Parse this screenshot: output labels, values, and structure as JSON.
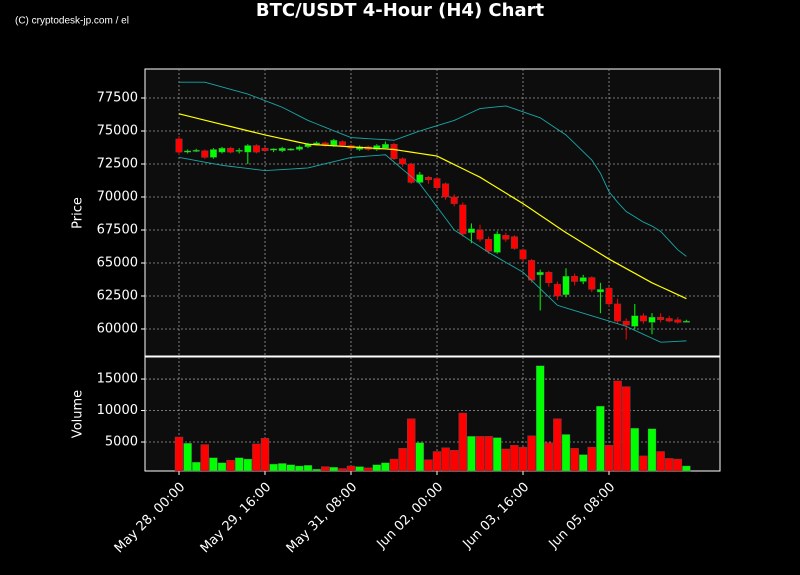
{
  "chart_data": {
    "type": "candlestick",
    "title": "BTC/USDT 4-Hour (H4) Chart",
    "watermark": "(C) cryptodesk-jp.com / el",
    "ylabel": "Price",
    "volume_label": "Volume",
    "grid": true,
    "up_color": "#00ff00",
    "down_color": "#ff0000",
    "ylim": [
      57955,
      79697
    ],
    "yticks": [
      60000,
      62500,
      65000,
      67500,
      70000,
      72500,
      75000,
      77500
    ],
    "volume_ylim": [
      400,
      18500
    ],
    "volume_yticks": [
      5000,
      10000,
      15000
    ],
    "categories": [
      "May 28, 00:00",
      null,
      null,
      null,
      null,
      null,
      null,
      null,
      null,
      null,
      "May 29, 16:00",
      null,
      null,
      null,
      null,
      null,
      null,
      null,
      null,
      null,
      "May 31, 08:00",
      null,
      null,
      null,
      null,
      null,
      null,
      null,
      null,
      null,
      "Jun 02, 00:00",
      null,
      null,
      null,
      null,
      null,
      null,
      null,
      null,
      null,
      "Jun 03, 16:00",
      null,
      null,
      null,
      null,
      null,
      null,
      null,
      null,
      null,
      "Jun 05, 08:00",
      null,
      null,
      null,
      null,
      null,
      null,
      null,
      null,
      null
    ],
    "open": [
      74400,
      73400,
      73450,
      73500,
      73000,
      73400,
      73700,
      73450,
      73400,
      73900,
      73700,
      73550,
      73500,
      73550,
      73600,
      73800,
      74000,
      74100,
      73900,
      74200,
      73900,
      73600,
      73800,
      73600,
      73700,
      74000,
      72900,
      72500,
      71100,
      71500,
      71400,
      71000,
      70000,
      69400,
      67300,
      67500,
      66800,
      65800,
      67100,
      67000,
      66000,
      65200,
      64100,
      64300,
      63400,
      62600,
      64000,
      63600,
      63900,
      62800,
      63100,
      61900,
      60600,
      60200,
      61000,
      60500,
      60900,
      60800,
      60700,
      60500
    ],
    "high": [
      74600,
      73600,
      73650,
      73600,
      73700,
      73800,
      73800,
      73700,
      74000,
      74000,
      73800,
      73700,
      73800,
      73700,
      73900,
      74100,
      74200,
      74200,
      74400,
      74300,
      74000,
      73900,
      73900,
      74000,
      74200,
      74100,
      73000,
      72600,
      71900,
      71600,
      71500,
      71100,
      70200,
      69600,
      68000,
      67900,
      67000,
      67400,
      67300,
      67100,
      66100,
      65300,
      64500,
      64400,
      63600,
      64600,
      64200,
      64100,
      64000,
      63500,
      63200,
      62300,
      60800,
      61900,
      61200,
      61200,
      61200,
      61000,
      60900,
      60700
    ],
    "low": [
      73200,
      73300,
      73400,
      72900,
      72900,
      73300,
      73300,
      73300,
      72500,
      73300,
      73400,
      73400,
      73400,
      73500,
      73500,
      73700,
      73900,
      73800,
      73800,
      73800,
      73600,
      73500,
      73500,
      73500,
      73600,
      72800,
      72300,
      71000,
      71000,
      71000,
      70500,
      69800,
      69300,
      67000,
      66500,
      66600,
      65700,
      65700,
      66600,
      66000,
      65100,
      63500,
      61400,
      63200,
      62200,
      62400,
      63300,
      63400,
      62800,
      61200,
      61700,
      60400,
      59200,
      60000,
      60400,
      59600,
      60500,
      60500,
      60400,
      60500
    ],
    "close": [
      73400,
      73500,
      73550,
      73000,
      73600,
      73700,
      73400,
      73550,
      73900,
      73400,
      73500,
      73650,
      73700,
      73650,
      73800,
      74000,
      74100,
      73900,
      74300,
      73900,
      73700,
      73800,
      73600,
      73900,
      74000,
      72900,
      72500,
      71100,
      71700,
      71300,
      70700,
      70000,
      69500,
      67200,
      67600,
      66800,
      65900,
      67200,
      66800,
      66100,
      65300,
      63700,
      64300,
      63500,
      62500,
      64000,
      63600,
      63900,
      63000,
      63000,
      61900,
      60600,
      60300,
      61000,
      60600,
      60900,
      60700,
      60600,
      60500,
      60600
    ],
    "volume": [
      5800,
      4800,
      1800,
      4600,
      2500,
      1700,
      2100,
      2500,
      2300,
      4700,
      5600,
      1500,
      1600,
      1400,
      1200,
      1300,
      700,
      1100,
      1000,
      800,
      1200,
      1100,
      900,
      1400,
      1700,
      2300,
      4000,
      8700,
      4900,
      2200,
      3500,
      4100,
      3700,
      9600,
      5900,
      5900,
      5900,
      5700,
      3900,
      4500,
      4200,
      6000,
      17100,
      4900,
      8700,
      6200,
      4000,
      3000,
      4200,
      10700,
      4500,
      14700,
      13800,
      7200,
      2800,
      7100,
      3500,
      2400,
      2300,
      1200
    ],
    "lines": [
      {
        "color": "#ffff00",
        "values": [
          76300,
          76140,
          75980,
          75820,
          75660,
          75500,
          75340,
          75180,
          75020,
          74860,
          74700,
          74560,
          74420,
          74280,
          74140,
          74000,
          73960,
          73920,
          73880,
          73840,
          73800,
          73760,
          73720,
          73680,
          73640,
          73600,
          73500,
          73400,
          73300,
          73200,
          73100,
          72780,
          72460,
          72140,
          71820,
          71500,
          71100,
          70700,
          70300,
          69900,
          69500,
          69060,
          68620,
          68180,
          67740,
          67300,
          66900,
          66500,
          66100,
          65700,
          65300,
          64940,
          64580,
          64220,
          63860,
          63500,
          63200,
          62900,
          62600,
          62300
        ]
      },
      {
        "color": "#1aa6a6",
        "values": [
          78700,
          78700,
          78700,
          78700,
          78520,
          78340,
          78160,
          77980,
          77800,
          77550,
          77300,
          77050,
          76800,
          76470,
          76130,
          75800,
          75540,
          75280,
          75020,
          74760,
          74500,
          74460,
          74420,
          74380,
          74340,
          74300,
          74530,
          74770,
          75000,
          75200,
          75400,
          75600,
          75800,
          76100,
          76400,
          76700,
          76770,
          76830,
          76900,
          76680,
          76450,
          76230,
          76000,
          75570,
          75130,
          74700,
          74070,
          73430,
          72800,
          71800,
          70400,
          69600,
          68900,
          68500,
          68100,
          67800,
          67400,
          66700,
          66000,
          65500
        ]
      },
      {
        "color": "#1aa6a6",
        "values": [
          73000,
          72880,
          72760,
          72640,
          72520,
          72400,
          72320,
          72240,
          72160,
          72080,
          72000,
          72040,
          72080,
          72120,
          72160,
          72200,
          72360,
          72520,
          72680,
          72840,
          73000,
          73050,
          73100,
          73150,
          73200,
          72650,
          72100,
          71550,
          71000,
          70130,
          69250,
          68380,
          67500,
          67080,
          66650,
          66230,
          65800,
          65430,
          65050,
          64680,
          64300,
          63680,
          63050,
          62430,
          61800,
          61600,
          61400,
          61200,
          61000,
          60800,
          60600,
          60400,
          60200,
          59900,
          59600,
          59300,
          59000,
          59030,
          59070,
          59100
        ]
      }
    ]
  }
}
